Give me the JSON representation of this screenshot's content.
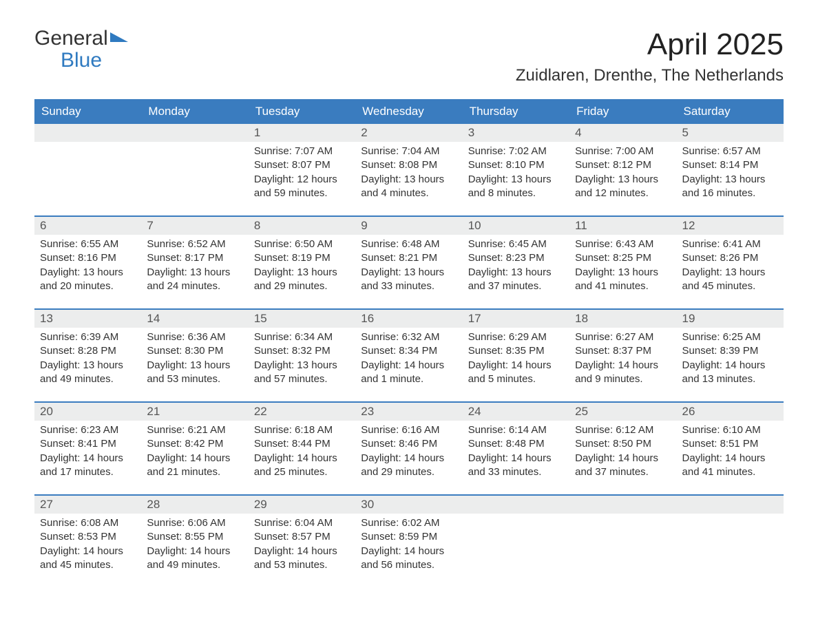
{
  "brand": {
    "general": "General",
    "blue": "Blue"
  },
  "title": "April 2025",
  "location": "Zuidlaren, Drenthe, The Netherlands",
  "colors": {
    "header_bg": "#3a7cbf",
    "header_text": "#ffffff",
    "daynum_bg": "#eceded",
    "brand_blue": "#2f7ac0",
    "text": "#333333",
    "border": "#3a7cbf"
  },
  "weekdays": [
    "Sunday",
    "Monday",
    "Tuesday",
    "Wednesday",
    "Thursday",
    "Friday",
    "Saturday"
  ],
  "weeks": [
    [
      {
        "num": "",
        "sunrise": "",
        "sunset": "",
        "daylight1": "",
        "daylight2": ""
      },
      {
        "num": "",
        "sunrise": "",
        "sunset": "",
        "daylight1": "",
        "daylight2": ""
      },
      {
        "num": "1",
        "sunrise": "Sunrise: 7:07 AM",
        "sunset": "Sunset: 8:07 PM",
        "daylight1": "Daylight: 12 hours",
        "daylight2": "and 59 minutes."
      },
      {
        "num": "2",
        "sunrise": "Sunrise: 7:04 AM",
        "sunset": "Sunset: 8:08 PM",
        "daylight1": "Daylight: 13 hours",
        "daylight2": "and 4 minutes."
      },
      {
        "num": "3",
        "sunrise": "Sunrise: 7:02 AM",
        "sunset": "Sunset: 8:10 PM",
        "daylight1": "Daylight: 13 hours",
        "daylight2": "and 8 minutes."
      },
      {
        "num": "4",
        "sunrise": "Sunrise: 7:00 AM",
        "sunset": "Sunset: 8:12 PM",
        "daylight1": "Daylight: 13 hours",
        "daylight2": "and 12 minutes."
      },
      {
        "num": "5",
        "sunrise": "Sunrise: 6:57 AM",
        "sunset": "Sunset: 8:14 PM",
        "daylight1": "Daylight: 13 hours",
        "daylight2": "and 16 minutes."
      }
    ],
    [
      {
        "num": "6",
        "sunrise": "Sunrise: 6:55 AM",
        "sunset": "Sunset: 8:16 PM",
        "daylight1": "Daylight: 13 hours",
        "daylight2": "and 20 minutes."
      },
      {
        "num": "7",
        "sunrise": "Sunrise: 6:52 AM",
        "sunset": "Sunset: 8:17 PM",
        "daylight1": "Daylight: 13 hours",
        "daylight2": "and 24 minutes."
      },
      {
        "num": "8",
        "sunrise": "Sunrise: 6:50 AM",
        "sunset": "Sunset: 8:19 PM",
        "daylight1": "Daylight: 13 hours",
        "daylight2": "and 29 minutes."
      },
      {
        "num": "9",
        "sunrise": "Sunrise: 6:48 AM",
        "sunset": "Sunset: 8:21 PM",
        "daylight1": "Daylight: 13 hours",
        "daylight2": "and 33 minutes."
      },
      {
        "num": "10",
        "sunrise": "Sunrise: 6:45 AM",
        "sunset": "Sunset: 8:23 PM",
        "daylight1": "Daylight: 13 hours",
        "daylight2": "and 37 minutes."
      },
      {
        "num": "11",
        "sunrise": "Sunrise: 6:43 AM",
        "sunset": "Sunset: 8:25 PM",
        "daylight1": "Daylight: 13 hours",
        "daylight2": "and 41 minutes."
      },
      {
        "num": "12",
        "sunrise": "Sunrise: 6:41 AM",
        "sunset": "Sunset: 8:26 PM",
        "daylight1": "Daylight: 13 hours",
        "daylight2": "and 45 minutes."
      }
    ],
    [
      {
        "num": "13",
        "sunrise": "Sunrise: 6:39 AM",
        "sunset": "Sunset: 8:28 PM",
        "daylight1": "Daylight: 13 hours",
        "daylight2": "and 49 minutes."
      },
      {
        "num": "14",
        "sunrise": "Sunrise: 6:36 AM",
        "sunset": "Sunset: 8:30 PM",
        "daylight1": "Daylight: 13 hours",
        "daylight2": "and 53 minutes."
      },
      {
        "num": "15",
        "sunrise": "Sunrise: 6:34 AM",
        "sunset": "Sunset: 8:32 PM",
        "daylight1": "Daylight: 13 hours",
        "daylight2": "and 57 minutes."
      },
      {
        "num": "16",
        "sunrise": "Sunrise: 6:32 AM",
        "sunset": "Sunset: 8:34 PM",
        "daylight1": "Daylight: 14 hours",
        "daylight2": "and 1 minute."
      },
      {
        "num": "17",
        "sunrise": "Sunrise: 6:29 AM",
        "sunset": "Sunset: 8:35 PM",
        "daylight1": "Daylight: 14 hours",
        "daylight2": "and 5 minutes."
      },
      {
        "num": "18",
        "sunrise": "Sunrise: 6:27 AM",
        "sunset": "Sunset: 8:37 PM",
        "daylight1": "Daylight: 14 hours",
        "daylight2": "and 9 minutes."
      },
      {
        "num": "19",
        "sunrise": "Sunrise: 6:25 AM",
        "sunset": "Sunset: 8:39 PM",
        "daylight1": "Daylight: 14 hours",
        "daylight2": "and 13 minutes."
      }
    ],
    [
      {
        "num": "20",
        "sunrise": "Sunrise: 6:23 AM",
        "sunset": "Sunset: 8:41 PM",
        "daylight1": "Daylight: 14 hours",
        "daylight2": "and 17 minutes."
      },
      {
        "num": "21",
        "sunrise": "Sunrise: 6:21 AM",
        "sunset": "Sunset: 8:42 PM",
        "daylight1": "Daylight: 14 hours",
        "daylight2": "and 21 minutes."
      },
      {
        "num": "22",
        "sunrise": "Sunrise: 6:18 AM",
        "sunset": "Sunset: 8:44 PM",
        "daylight1": "Daylight: 14 hours",
        "daylight2": "and 25 minutes."
      },
      {
        "num": "23",
        "sunrise": "Sunrise: 6:16 AM",
        "sunset": "Sunset: 8:46 PM",
        "daylight1": "Daylight: 14 hours",
        "daylight2": "and 29 minutes."
      },
      {
        "num": "24",
        "sunrise": "Sunrise: 6:14 AM",
        "sunset": "Sunset: 8:48 PM",
        "daylight1": "Daylight: 14 hours",
        "daylight2": "and 33 minutes."
      },
      {
        "num": "25",
        "sunrise": "Sunrise: 6:12 AM",
        "sunset": "Sunset: 8:50 PM",
        "daylight1": "Daylight: 14 hours",
        "daylight2": "and 37 minutes."
      },
      {
        "num": "26",
        "sunrise": "Sunrise: 6:10 AM",
        "sunset": "Sunset: 8:51 PM",
        "daylight1": "Daylight: 14 hours",
        "daylight2": "and 41 minutes."
      }
    ],
    [
      {
        "num": "27",
        "sunrise": "Sunrise: 6:08 AM",
        "sunset": "Sunset: 8:53 PM",
        "daylight1": "Daylight: 14 hours",
        "daylight2": "and 45 minutes."
      },
      {
        "num": "28",
        "sunrise": "Sunrise: 6:06 AM",
        "sunset": "Sunset: 8:55 PM",
        "daylight1": "Daylight: 14 hours",
        "daylight2": "and 49 minutes."
      },
      {
        "num": "29",
        "sunrise": "Sunrise: 6:04 AM",
        "sunset": "Sunset: 8:57 PM",
        "daylight1": "Daylight: 14 hours",
        "daylight2": "and 53 minutes."
      },
      {
        "num": "30",
        "sunrise": "Sunrise: 6:02 AM",
        "sunset": "Sunset: 8:59 PM",
        "daylight1": "Daylight: 14 hours",
        "daylight2": "and 56 minutes."
      },
      {
        "num": "",
        "sunrise": "",
        "sunset": "",
        "daylight1": "",
        "daylight2": ""
      },
      {
        "num": "",
        "sunrise": "",
        "sunset": "",
        "daylight1": "",
        "daylight2": ""
      },
      {
        "num": "",
        "sunrise": "",
        "sunset": "",
        "daylight1": "",
        "daylight2": ""
      }
    ]
  ]
}
